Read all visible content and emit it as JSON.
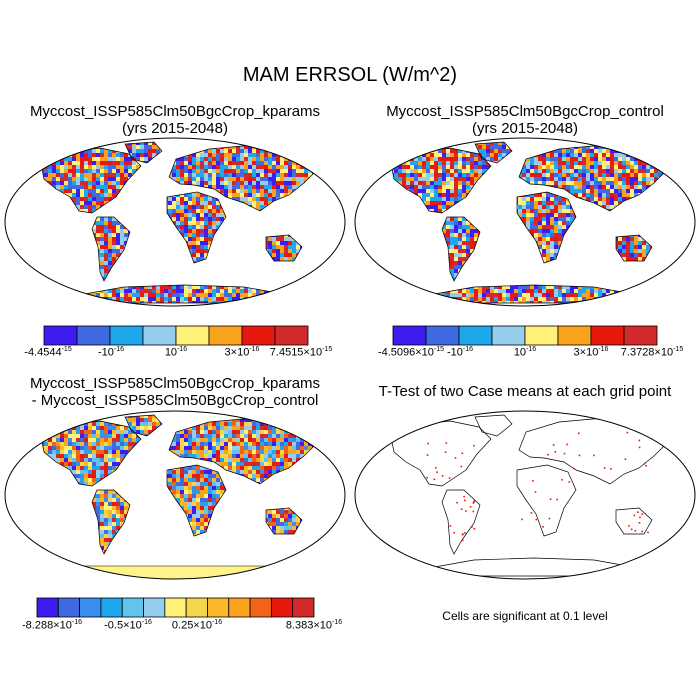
{
  "title": "MAM ERRSOL (W/m^2)",
  "panels": {
    "top_left": {
      "title_line1": "Myccost_ISSP585Clm50BgcCrop_kparams",
      "title_line2": "(yrs 2015-2048)"
    },
    "top_right": {
      "title_line1": "Myccost_ISSP585Clm50BgcCrop_control",
      "title_line2": "(yrs 2015-2048)"
    },
    "bottom_left": {
      "title_line1": "Myccost_ISSP585Clm50BgcCrop_kparams",
      "title_line2": "- Myccost_ISSP585Clm50BgcCrop_control"
    },
    "bottom_right": {
      "title": "T-Test of two Case means at each grid point",
      "note": "Cells are significant at 0.1 level"
    }
  },
  "colorbars": {
    "top_left": {
      "colors": [
        "#3d1df2",
        "#4169e1",
        "#1ea7ea",
        "#96cdec",
        "#fff07a",
        "#f9a21b",
        "#e81710",
        "#d22a2a"
      ],
      "labels": [
        {
          "m": "-4.4544",
          "e": "-15"
        },
        {
          "m": "-10",
          "e": "-16"
        },
        {
          "m": "10",
          "e": "-16"
        },
        {
          "m": "3×10",
          "e": "-16"
        },
        {
          "m": "7.4515×10",
          "e": "-15"
        }
      ]
    },
    "top_right": {
      "colors": [
        "#3d1df2",
        "#4169e1",
        "#1ea7ea",
        "#96cdec",
        "#fff07a",
        "#f9a21b",
        "#e81710",
        "#d22a2a"
      ],
      "labels": [
        {
          "m": "-4.5096×10",
          "e": "-15"
        },
        {
          "m": "-10",
          "e": "-16"
        },
        {
          "m": "10",
          "e": "-16"
        },
        {
          "m": "3×10",
          "e": "-16"
        },
        {
          "m": "7.3728×10",
          "e": "-15"
        }
      ]
    },
    "bottom_left": {
      "colors": [
        "#3d1df2",
        "#4169e1",
        "#3a8ef0",
        "#1ea7ea",
        "#63c3ef",
        "#96cdec",
        "#fff07a",
        "#f5d64a",
        "#fbb72a",
        "#f9a21b",
        "#f0641a",
        "#e81710",
        "#d22a2a"
      ],
      "labels": [
        {
          "m": "-8.288×10",
          "e": "-16"
        },
        {
          "m": "-0.5×10",
          "e": "-16"
        },
        {
          "m": "0.25×10",
          "e": "-16"
        },
        {
          "m": "8.383×10",
          "e": "-16"
        }
      ]
    }
  },
  "colors": {
    "ocean": "#ffffff",
    "coast": "#000000",
    "significant_dot": "#e81710",
    "antarctica_diff": "#fff38a"
  }
}
